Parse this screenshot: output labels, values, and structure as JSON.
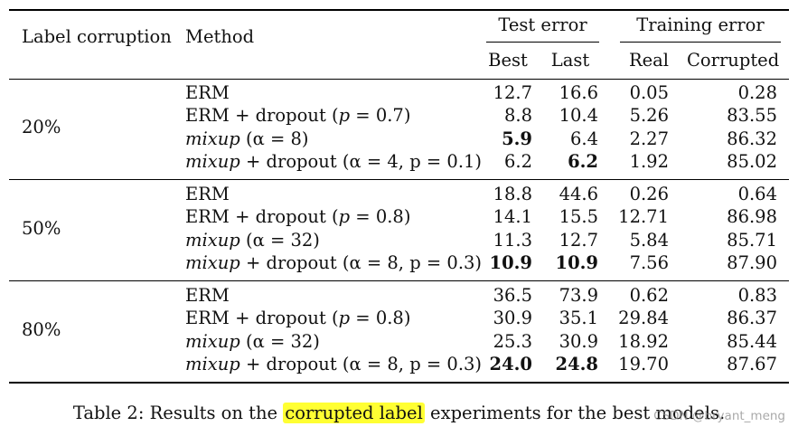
{
  "header": {
    "label_corruption": "Label corruption",
    "method": "Method",
    "test_error": "Test error",
    "training_error": "Training error",
    "best": "Best",
    "last": "Last",
    "real": "Real",
    "corrupted": "Corrupted"
  },
  "groups": [
    {
      "corruption": "20%",
      "rows": [
        {
          "method_pre": "",
          "method_ital": "",
          "method_post": "ERM",
          "best": "12.7",
          "last": "16.6",
          "real": "0.05",
          "corrupted": "0.28",
          "bold_best": false,
          "bold_last": false
        },
        {
          "method_pre": "ERM + dropout (",
          "method_ital": "p",
          "method_post": " = 0.7)",
          "best": "8.8",
          "last": "10.4",
          "real": "5.26",
          "corrupted": "83.55",
          "bold_best": false,
          "bold_last": false
        },
        {
          "method_pre": "",
          "method_ital": "mixup",
          "method_post": " (α = 8)",
          "best": "5.9",
          "last": "6.4",
          "real": "2.27",
          "corrupted": "86.32",
          "bold_best": true,
          "bold_last": false
        },
        {
          "method_pre": "",
          "method_ital": "mixup",
          "method_post": " + dropout (α = 4, p = 0.1)",
          "best": "6.2",
          "last": "6.2",
          "real": "1.92",
          "corrupted": "85.02",
          "bold_best": false,
          "bold_last": true
        }
      ]
    },
    {
      "corruption": "50%",
      "rows": [
        {
          "method_pre": "",
          "method_ital": "",
          "method_post": "ERM",
          "best": "18.8",
          "last": "44.6",
          "real": "0.26",
          "corrupted": "0.64",
          "bold_best": false,
          "bold_last": false
        },
        {
          "method_pre": "ERM + dropout (",
          "method_ital": "p",
          "method_post": " = 0.8)",
          "best": "14.1",
          "last": "15.5",
          "real": "12.71",
          "corrupted": "86.98",
          "bold_best": false,
          "bold_last": false
        },
        {
          "method_pre": "",
          "method_ital": "mixup",
          "method_post": " (α = 32)",
          "best": "11.3",
          "last": "12.7",
          "real": "5.84",
          "corrupted": "85.71",
          "bold_best": false,
          "bold_last": false
        },
        {
          "method_pre": "",
          "method_ital": "mixup",
          "method_post": " + dropout (α = 8, p = 0.3)",
          "best": "10.9",
          "last": "10.9",
          "real": "7.56",
          "corrupted": "87.90",
          "bold_best": true,
          "bold_last": true
        }
      ]
    },
    {
      "corruption": "80%",
      "rows": [
        {
          "method_pre": "",
          "method_ital": "",
          "method_post": "ERM",
          "best": "36.5",
          "last": "73.9",
          "real": "0.62",
          "corrupted": "0.83",
          "bold_best": false,
          "bold_last": false
        },
        {
          "method_pre": "ERM + dropout (",
          "method_ital": "p",
          "method_post": " = 0.8)",
          "best": "30.9",
          "last": "35.1",
          "real": "29.84",
          "corrupted": "86.37",
          "bold_best": false,
          "bold_last": false
        },
        {
          "method_pre": "",
          "method_ital": "mixup",
          "method_post": " (α = 32)",
          "best": "25.3",
          "last": "30.9",
          "real": "18.92",
          "corrupted": "85.44",
          "bold_best": false,
          "bold_last": false
        },
        {
          "method_pre": "",
          "method_ital": "mixup",
          "method_post": " + dropout (α = 8, p = 0.3)",
          "best": "24.0",
          "last": "24.8",
          "real": "19.70",
          "corrupted": "87.67",
          "bold_best": true,
          "bold_last": true
        }
      ]
    }
  ],
  "caption": {
    "prefix": "Table 2: Results on the ",
    "highlight": "corrupted label",
    "suffix": " experiments for the best models."
  },
  "watermark": "CSDN @bryant_meng",
  "colors": {
    "highlight": "#ffff33",
    "rule": "#000000"
  }
}
